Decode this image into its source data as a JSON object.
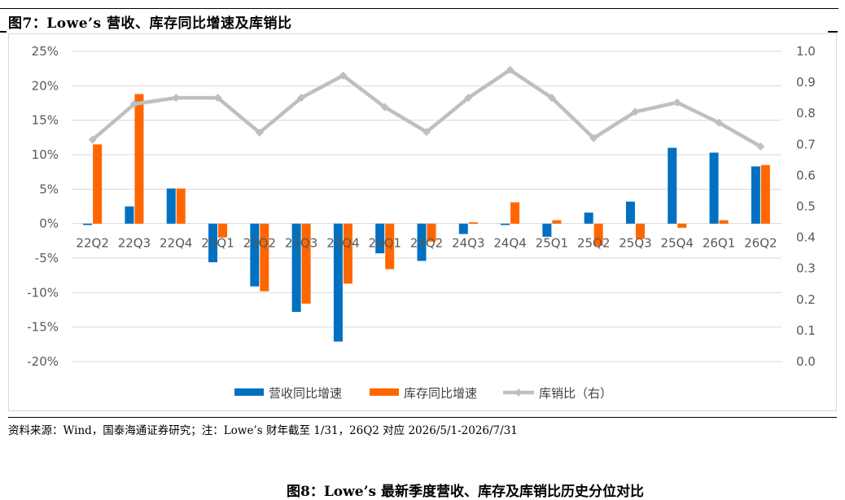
{
  "title": "图7：Lowe’s 营收、库存同比增速及库销比",
  "source": "资料来源：Wind，国泰海通证券研究；注：Lowe’s 财年截至 1/31，26Q2 对应 2026/5/1-2026/7/31",
  "next_title": "图8：Lowe’s 最新季度营收、库存及库销比历史分位对比",
  "colors": {
    "revenue": "#0070C0",
    "inventory": "#FF6600",
    "ratio": "#BFBFBF",
    "grid": "#D9D9D9"
  },
  "chart_data": {
    "type": "bar",
    "categories": [
      "22Q2",
      "22Q3",
      "22Q4",
      "23Q1",
      "23Q2",
      "23Q3",
      "23Q4",
      "24Q1",
      "24Q2",
      "24Q3",
      "24Q4",
      "25Q1",
      "25Q2",
      "25Q3",
      "25Q4",
      "26Q1",
      "26Q2"
    ],
    "series": [
      {
        "name": "营收同比增速",
        "type": "bar",
        "axis": "left",
        "values": [
          -0.2,
          2.5,
          5.1,
          -5.6,
          -9.1,
          -12.8,
          -17.1,
          -4.3,
          -5.4,
          -1.5,
          -0.2,
          -1.9,
          1.6,
          3.2,
          11.0,
          10.3,
          8.3
        ]
      },
      {
        "name": "库存同比增速",
        "type": "bar",
        "axis": "left",
        "values": [
          11.5,
          18.8,
          5.1,
          -2.0,
          -9.8,
          -11.6,
          -8.7,
          -6.6,
          -2.6,
          0.2,
          3.1,
          0.5,
          -3.2,
          -2.2,
          -0.6,
          0.5,
          8.5
        ]
      },
      {
        "name": "库销比（右）",
        "type": "line",
        "axis": "right",
        "values": [
          0.715,
          0.83,
          0.85,
          0.85,
          0.738,
          0.85,
          0.922,
          0.82,
          0.74,
          0.85,
          0.94,
          0.85,
          0.72,
          0.805,
          0.835,
          0.77,
          0.693
        ]
      }
    ],
    "y_left": {
      "ylim": [
        -20,
        25
      ],
      "ticks": [
        -20,
        -15,
        -10,
        -5,
        0,
        5,
        10,
        15,
        20,
        25
      ],
      "tick_labels": [
        "-20%",
        "-15%",
        "-10%",
        "-5%",
        "0%",
        "5%",
        "10%",
        "15%",
        "20%",
        "25%"
      ]
    },
    "y_right": {
      "ylim": [
        0,
        1.0
      ],
      "ticks": [
        0,
        0.1,
        0.2,
        0.3,
        0.4,
        0.5,
        0.6,
        0.7,
        0.8,
        0.9,
        1.0
      ],
      "tick_labels": [
        "0.0",
        "0.1",
        "0.2",
        "0.3",
        "0.4",
        "0.5",
        "0.6",
        "0.7",
        "0.8",
        "0.9",
        "1.0"
      ]
    },
    "grid": true,
    "legend": "bottom"
  }
}
